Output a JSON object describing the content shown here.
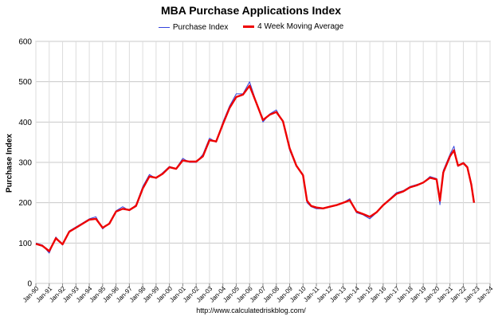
{
  "chart_data": {
    "type": "line",
    "title": "MBA Purchase Applications Index",
    "ylabel": "Purchase Index",
    "xlabel": "",
    "source": "http://www.calculatedriskblog.com/",
    "ylim": [
      0,
      600
    ],
    "yticks": [
      0,
      100,
      200,
      300,
      400,
      500,
      600
    ],
    "xlim": [
      1990.0,
      2024.0
    ],
    "xticks": [
      "Jan-90",
      "Jan-91",
      "Jan-92",
      "Jan-93",
      "Jan-94",
      "Jan-95",
      "Jan-96",
      "Jan-97",
      "Jan-98",
      "Jan-99",
      "Jan-00",
      "Jan-01",
      "Jan-02",
      "Jan-03",
      "Jan-04",
      "Jan-05",
      "Jan-06",
      "Jan-07",
      "Jan-08",
      "Jan-09",
      "Jan-10",
      "Jan-11",
      "Jan-12",
      "Jan-13",
      "Jan-14",
      "Jan-15",
      "Jan-16",
      "Jan-17",
      "Jan-18",
      "Jan-19",
      "Jan-20",
      "Jan-21",
      "Jan-22",
      "Jan-23",
      "Jan-24"
    ],
    "grid": true,
    "legend_position": "top",
    "series": [
      {
        "name": "Purchase Index",
        "color": "#3344dd",
        "x": [
          1990.0,
          1990.5,
          1991.0,
          1991.5,
          1992.0,
          1992.5,
          1993.0,
          1993.5,
          1994.0,
          1994.5,
          1995.0,
          1995.5,
          1996.0,
          1996.5,
          1997.0,
          1997.5,
          1998.0,
          1998.5,
          1999.0,
          1999.5,
          2000.0,
          2000.5,
          2001.0,
          2001.5,
          2002.0,
          2002.5,
          2003.0,
          2003.5,
          2004.0,
          2004.5,
          2005.0,
          2005.5,
          2006.0,
          2006.5,
          2007.0,
          2007.5,
          2008.0,
          2008.5,
          2009.0,
          2009.5,
          2010.0,
          2010.3,
          2010.6,
          2011.0,
          2011.5,
          2012.0,
          2012.5,
          2013.0,
          2013.5,
          2014.0,
          2014.5,
          2015.0,
          2015.5,
          2016.0,
          2016.5,
          2017.0,
          2017.5,
          2018.0,
          2018.5,
          2019.0,
          2019.5,
          2020.0,
          2020.25,
          2020.5,
          2021.0,
          2021.3,
          2021.6,
          2022.0,
          2022.3,
          2022.6,
          2022.8
        ],
        "y": [
          100,
          95,
          75,
          115,
          95,
          130,
          140,
          150,
          160,
          165,
          135,
          150,
          180,
          190,
          180,
          195,
          240,
          270,
          260,
          275,
          290,
          285,
          310,
          300,
          300,
          320,
          360,
          350,
          400,
          440,
          470,
          470,
          500,
          450,
          400,
          420,
          430,
          400,
          330,
          290,
          270,
          200,
          190,
          185,
          185,
          190,
          195,
          200,
          210,
          175,
          170,
          160,
          175,
          195,
          210,
          225,
          230,
          240,
          245,
          250,
          265,
          260,
          195,
          280,
          320,
          340,
          290,
          300,
          290,
          240,
          205
        ]
      },
      {
        "name": "4 Week Moving Average",
        "color": "#ee0000",
        "x": [
          1990.0,
          1990.5,
          1991.0,
          1991.5,
          1992.0,
          1992.5,
          1993.0,
          1993.5,
          1994.0,
          1994.5,
          1995.0,
          1995.5,
          1996.0,
          1996.5,
          1997.0,
          1997.5,
          1998.0,
          1998.5,
          1999.0,
          1999.5,
          2000.0,
          2000.5,
          2001.0,
          2001.5,
          2002.0,
          2002.5,
          2003.0,
          2003.5,
          2004.0,
          2004.5,
          2005.0,
          2005.5,
          2006.0,
          2006.5,
          2007.0,
          2007.5,
          2008.0,
          2008.5,
          2009.0,
          2009.5,
          2010.0,
          2010.3,
          2010.6,
          2011.0,
          2011.5,
          2012.0,
          2012.5,
          2013.0,
          2013.5,
          2014.0,
          2014.5,
          2015.0,
          2015.5,
          2016.0,
          2016.5,
          2017.0,
          2017.5,
          2018.0,
          2018.5,
          2019.0,
          2019.5,
          2020.0,
          2020.25,
          2020.5,
          2021.0,
          2021.3,
          2021.6,
          2022.0,
          2022.3,
          2022.6,
          2022.8
        ],
        "y": [
          98,
          93,
          80,
          112,
          97,
          128,
          138,
          148,
          158,
          160,
          138,
          148,
          178,
          185,
          182,
          192,
          235,
          265,
          262,
          272,
          288,
          284,
          305,
          302,
          302,
          315,
          355,
          352,
          395,
          435,
          462,
          468,
          490,
          448,
          405,
          418,
          425,
          402,
          335,
          292,
          268,
          205,
          192,
          188,
          186,
          190,
          194,
          200,
          206,
          178,
          172,
          165,
          176,
          194,
          208,
          222,
          228,
          238,
          243,
          250,
          262,
          258,
          205,
          275,
          315,
          330,
          292,
          298,
          288,
          245,
          200
        ]
      }
    ]
  }
}
